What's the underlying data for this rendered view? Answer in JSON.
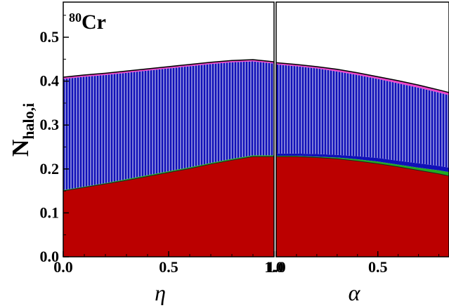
{
  "chart_data": {
    "type": "area",
    "stacked": true,
    "annotation": {
      "superscript": "80",
      "text": "Cr"
    },
    "ylabel": {
      "main": "N",
      "sub": "halo,i"
    },
    "ylim": [
      0.0,
      0.58
    ],
    "yticks": [
      "0.0",
      "0.1",
      "0.2",
      "0.3",
      "0.4",
      "0.5"
    ],
    "ytick_values": [
      0.0,
      0.1,
      0.2,
      0.3,
      0.4,
      0.5
    ],
    "grid": false,
    "colors": {
      "red": "#bb0000",
      "blue": "#1010b8",
      "green": "#22aa22",
      "magenta": "#ee44cc",
      "hatch": "#ffffff"
    },
    "panels": [
      {
        "xlabel": "η",
        "xlim": [
          0.0,
          1.0
        ],
        "xticks": [
          "0.0",
          "0.5",
          "1.0"
        ],
        "xtick_values": [
          0.0,
          0.5,
          1.0
        ],
        "x": [
          0.0,
          0.1,
          0.2,
          0.3,
          0.4,
          0.5,
          0.6,
          0.7,
          0.8,
          0.9,
          1.0
        ],
        "layers": [
          {
            "color": "red",
            "top": [
              0.15,
              0.158,
              0.166,
              0.174,
              0.183,
              0.192,
              0.201,
              0.211,
              0.22,
              0.228,
              0.228
            ]
          },
          {
            "color": "green",
            "top": [
              0.152,
              0.16,
              0.168,
              0.177,
              0.186,
              0.195,
              0.204,
              0.214,
              0.223,
              0.231,
              0.231
            ]
          },
          {
            "color": "blue",
            "hatched": true,
            "top": [
              0.405,
              0.41,
              0.414,
              0.419,
              0.424,
              0.429,
              0.434,
              0.439,
              0.443,
              0.445,
              0.44
            ]
          },
          {
            "color": "magenta",
            "top": [
              0.409,
              0.414,
              0.418,
              0.423,
              0.428,
              0.433,
              0.438,
              0.443,
              0.447,
              0.449,
              0.444
            ]
          }
        ]
      },
      {
        "xlabel": "α",
        "xlim": [
          1.0,
          0.15
        ],
        "xticks": [
          "1.0",
          "0.5"
        ],
        "xtick_values": [
          1.0,
          0.5
        ],
        "x": [
          1.0,
          0.9,
          0.8,
          0.7,
          0.6,
          0.5,
          0.4,
          0.3,
          0.2,
          0.15
        ],
        "layers": [
          {
            "color": "red",
            "top": [
              0.228,
              0.228,
              0.226,
              0.223,
              0.218,
              0.212,
              0.205,
              0.197,
              0.189,
              0.184
            ]
          },
          {
            "color": "green",
            "top": [
              0.23,
              0.23,
              0.228,
              0.226,
              0.222,
              0.217,
              0.21,
              0.203,
              0.197,
              0.193
            ]
          },
          {
            "color": "blue",
            "top": [
              0.235,
              0.235,
              0.234,
              0.232,
              0.229,
              0.225,
              0.219,
              0.213,
              0.207,
              0.203
            ]
          },
          {
            "color": "blue",
            "hatched": true,
            "top": [
              0.438,
              0.434,
              0.429,
              0.422,
              0.414,
              0.405,
              0.395,
              0.385,
              0.374,
              0.368
            ]
          },
          {
            "color": "magenta",
            "top": [
              0.442,
              0.438,
              0.433,
              0.427,
              0.419,
              0.41,
              0.401,
              0.391,
              0.38,
              0.374
            ]
          }
        ]
      }
    ]
  }
}
